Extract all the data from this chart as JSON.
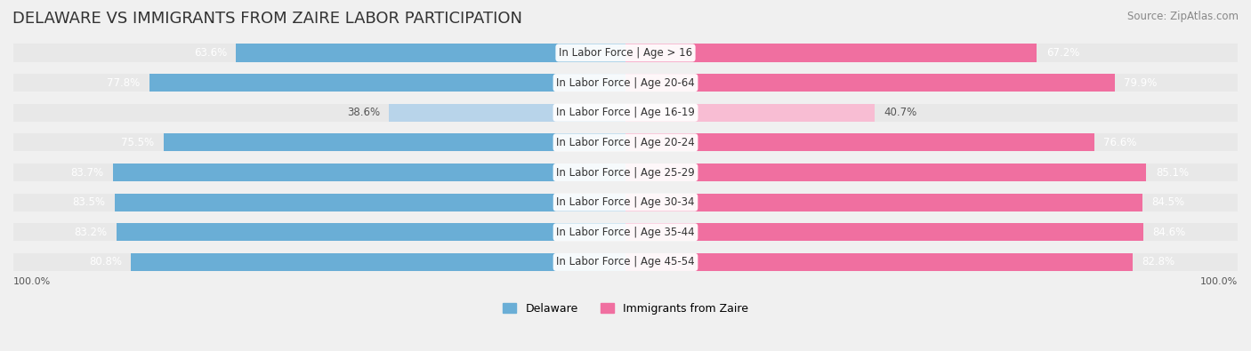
{
  "title": "DELAWARE VS IMMIGRANTS FROM ZAIRE LABOR PARTICIPATION",
  "source": "Source: ZipAtlas.com",
  "categories": [
    "In Labor Force | Age > 16",
    "In Labor Force | Age 20-64",
    "In Labor Force | Age 16-19",
    "In Labor Force | Age 20-24",
    "In Labor Force | Age 25-29",
    "In Labor Force | Age 30-34",
    "In Labor Force | Age 35-44",
    "In Labor Force | Age 45-54"
  ],
  "delaware_values": [
    63.6,
    77.8,
    38.6,
    75.5,
    83.7,
    83.5,
    83.2,
    80.8
  ],
  "zaire_values": [
    67.2,
    79.9,
    40.7,
    76.6,
    85.1,
    84.5,
    84.6,
    82.8
  ],
  "delaware_color_full": "#6aaed6",
  "delaware_color_light": "#b8d4ea",
  "zaire_color_full": "#f06fa0",
  "zaire_color_light": "#f8bdd3",
  "background_color": "#f0f0f0",
  "bar_bg_color": "#e8e8e8",
  "label_bg_color": "#ffffff",
  "max_value": 100.0,
  "bar_height": 0.6,
  "title_fontsize": 13,
  "label_fontsize": 8.5,
  "value_fontsize": 8.5,
  "legend_fontsize": 9,
  "axis_label_fontsize": 8
}
